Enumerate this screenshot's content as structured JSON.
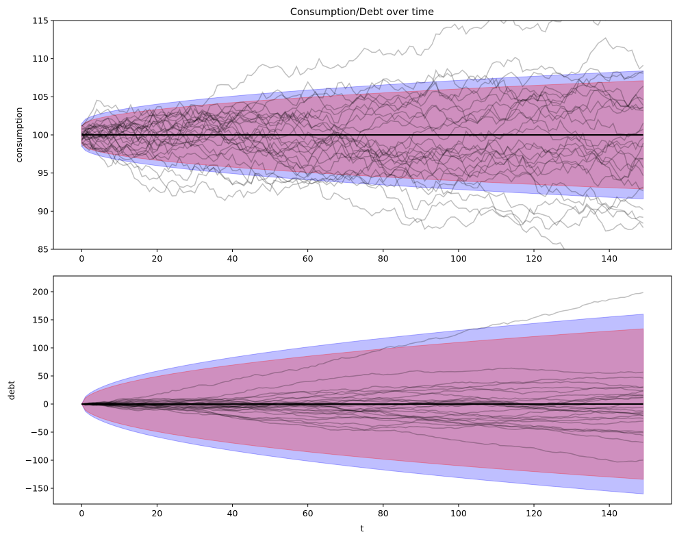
{
  "chart_data": [
    {
      "type": "line",
      "title": "Consumption/Debt over time",
      "xlabel": "",
      "ylabel": "consumption",
      "xlim": [
        -7.5,
        156.5
      ],
      "ylim": [
        85,
        115
      ],
      "xticks": [
        0,
        20,
        40,
        60,
        80,
        100,
        120,
        140
      ],
      "yticks": [
        85,
        90,
        95,
        100,
        105,
        110,
        115
      ],
      "mean": 100,
      "t_max": 149,
      "bands": [
        {
          "name": "outer-band",
          "color": "#0000ff",
          "alpha": 0.25,
          "half_width_start": 1.5,
          "half_width_end": 8.4
        },
        {
          "name": "inner-band",
          "color": "#ff0000",
          "alpha": 0.25,
          "half_width_start": 1.15,
          "half_width_end": 7.1
        }
      ],
      "paths": {
        "count": 25,
        "seed": 7,
        "step_sd": 0.56,
        "start_sd": 0.8,
        "color": "#000000",
        "alpha": 0.25
      },
      "highlight_path": {
        "name": "low-outlier-path",
        "end": 89.8
      }
    },
    {
      "type": "line",
      "title": "",
      "xlabel": "t",
      "ylabel": "debt",
      "xlim": [
        -7.5,
        156.5
      ],
      "ylim": [
        -178,
        228
      ],
      "xticks": [
        0,
        20,
        40,
        60,
        80,
        100,
        120,
        140
      ],
      "yticks": [
        -150,
        -100,
        -50,
        0,
        50,
        100,
        150,
        200
      ],
      "mean": 0,
      "t_max": 149,
      "bands": [
        {
          "name": "outer-band",
          "color": "#0000ff",
          "alpha": 0.25,
          "half_width_start": 0,
          "half_width_end": 160
        },
        {
          "name": "inner-band",
          "color": "#ff0000",
          "alpha": 0.25,
          "half_width_start": 0,
          "half_width_end": 134
        }
      ],
      "paths": {
        "count": 25,
        "seed": 19,
        "drift_sd": 0.3,
        "color": "#000000",
        "alpha": 0.25
      },
      "highlight_path": {
        "name": "high-outlier-path",
        "end": 207
      }
    }
  ]
}
